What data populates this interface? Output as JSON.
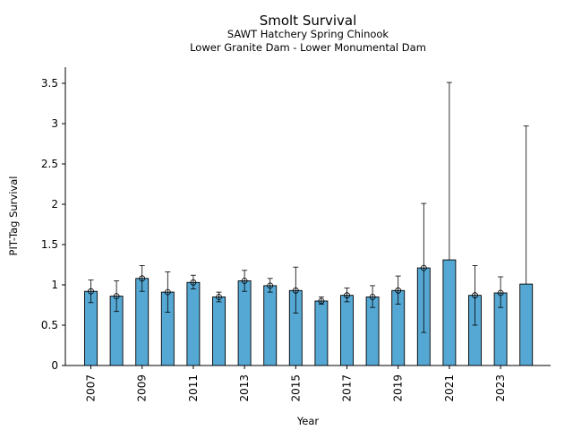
{
  "chart_data": {
    "type": "bar",
    "title": "Smolt Survival",
    "subtitle_lines": [
      "SAWT Hatchery Spring Chinook",
      "Lower Granite Dam - Lower Monumental Dam"
    ],
    "xlabel": "Year",
    "ylabel": "PIT-Tag Survival",
    "categories": [
      "2007",
      "2008",
      "2009",
      "2010",
      "2011",
      "2012",
      "2013",
      "2014",
      "2015",
      "2016",
      "2017",
      "2018",
      "2019",
      "2020",
      "2021",
      "2022",
      "2023",
      "2024"
    ],
    "values": [
      0.92,
      0.86,
      1.08,
      0.91,
      1.03,
      0.85,
      1.05,
      0.99,
      0.93,
      0.8,
      0.87,
      0.85,
      0.93,
      1.21,
      1.31,
      0.87,
      0.9,
      1.01
    ],
    "error_low": [
      0.78,
      0.67,
      0.92,
      0.66,
      0.95,
      0.79,
      0.92,
      0.91,
      0.65,
      0.76,
      0.79,
      0.72,
      0.76,
      0.41,
      null,
      0.5,
      0.72,
      null
    ],
    "error_high": [
      1.06,
      1.05,
      1.24,
      1.16,
      1.12,
      0.91,
      1.18,
      1.08,
      1.22,
      0.85,
      0.96,
      0.99,
      1.11,
      2.01,
      3.51,
      1.24,
      1.1,
      2.97
    ],
    "point_marker": [
      true,
      true,
      true,
      true,
      true,
      true,
      true,
      true,
      true,
      true,
      true,
      true,
      true,
      true,
      false,
      true,
      true,
      false
    ],
    "x_tick_labels": [
      "2007",
      "2009",
      "2011",
      "2013",
      "2015",
      "2017",
      "2019",
      "2021",
      "2023"
    ],
    "y_ticks": [
      0,
      0.5,
      1,
      1.5,
      2,
      2.5,
      3,
      3.5
    ],
    "y_tick_labels": [
      "0",
      "0.5",
      "1",
      "1.5",
      "2",
      "2.5",
      "3",
      "3.5"
    ],
    "ylim": [
      0,
      3.7
    ],
    "bar_color": "#56a8d4",
    "grid": false,
    "legend": "none"
  }
}
